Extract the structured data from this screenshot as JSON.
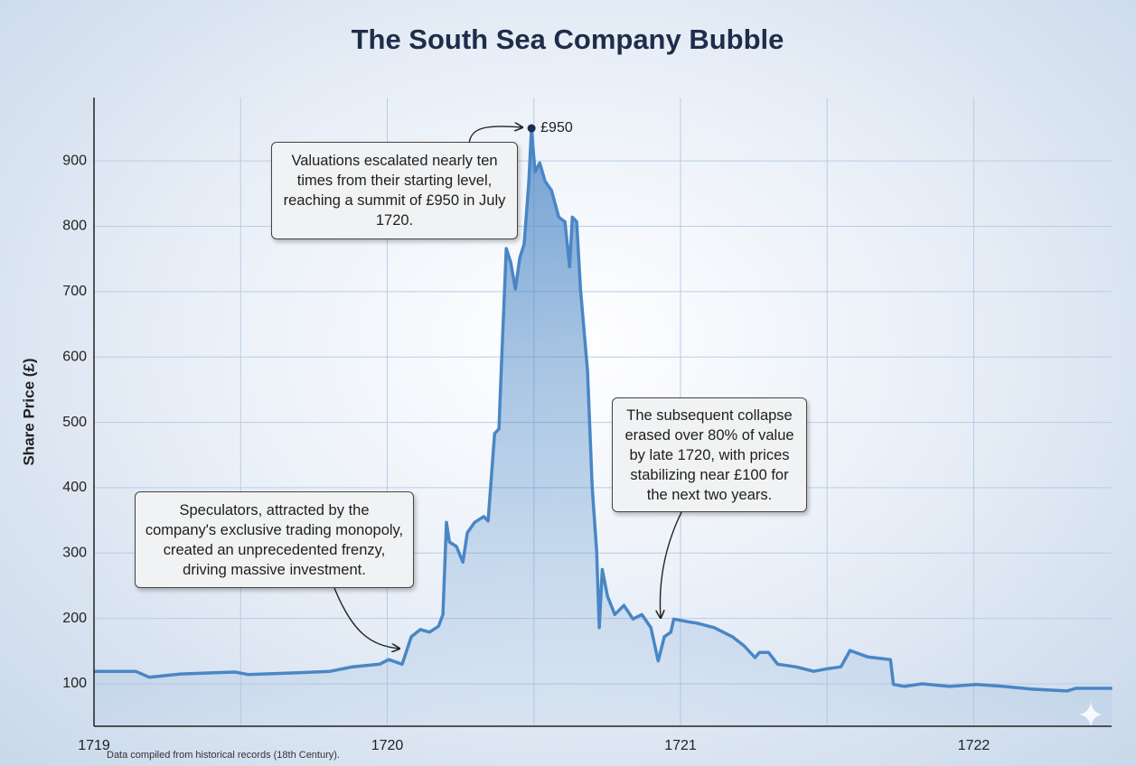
{
  "chart_data": {
    "type": "line",
    "title": "The South Sea Company Bubble",
    "y_label": "Share Price (£)",
    "footnote": "Data compiled from historical records (18th Century).",
    "xlim": [
      1719,
      1722.47
    ],
    "xticks": [
      1719,
      1720,
      1721,
      1722
    ],
    "xminor": [
      1719.5,
      1720.5,
      1721.5
    ],
    "ylim": [
      35,
      997
    ],
    "yticks": [
      100,
      200,
      300,
      400,
      500,
      600,
      700,
      800,
      900
    ],
    "grid": true,
    "series": [
      {
        "name": "Share Price",
        "color": "#4a86c5",
        "x": [
          1719.0,
          1719.142,
          1719.188,
          1719.296,
          1719.481,
          1719.527,
          1719.697,
          1719.805,
          1719.882,
          1719.974,
          1720.005,
          1720.051,
          1720.082,
          1720.113,
          1720.144,
          1720.175,
          1720.19,
          1720.202,
          1720.212,
          1720.236,
          1720.258,
          1720.273,
          1720.298,
          1720.329,
          1720.344,
          1720.366,
          1720.381,
          1720.39,
          1720.406,
          1720.421,
          1720.437,
          1720.452,
          1720.467,
          1720.483,
          1720.492,
          1720.504,
          1720.52,
          1720.538,
          1720.56,
          1720.585,
          1720.606,
          1720.622,
          1720.631,
          1720.646,
          1720.659,
          1720.683,
          1720.699,
          1720.714,
          1720.723,
          1720.733,
          1720.751,
          1720.776,
          1720.807,
          1720.838,
          1720.868,
          1720.899,
          1720.924,
          1720.945,
          1720.967,
          1720.977,
          1721.023,
          1721.054,
          1721.115,
          1721.177,
          1721.217,
          1721.254,
          1721.269,
          1721.3,
          1721.331,
          1721.393,
          1721.454,
          1721.501,
          1721.547,
          1721.578,
          1721.639,
          1721.716,
          1721.726,
          1721.763,
          1721.824,
          1721.917,
          1722.009,
          1722.102,
          1722.194,
          1722.318,
          1722.348,
          1722.472
        ],
        "values": [
          119,
          119,
          110,
          115,
          118,
          114,
          117,
          119,
          126,
          130,
          137,
          130,
          172,
          183,
          179,
          188,
          206,
          347,
          317,
          310,
          286,
          331,
          347,
          356,
          349,
          483,
          490,
          593,
          766,
          745,
          704,
          752,
          773,
          869,
          950,
          883,
          897,
          869,
          855,
          814,
          807,
          738,
          814,
          807,
          704,
          579,
          400,
          303,
          186,
          275,
          234,
          206,
          220,
          199,
          206,
          186,
          135,
          172,
          179,
          199,
          195,
          193,
          186,
          172,
          158,
          140,
          148,
          148,
          130,
          126,
          119,
          123,
          126,
          151,
          141,
          137,
          99,
          96,
          100,
          96,
          99,
          96,
          92,
          89,
          93,
          93
        ]
      }
    ],
    "peak_label": "£950",
    "annotations": [
      "Valuations escalated nearly ten times from their starting level, reaching a summit of £950 in July 1720.",
      "Speculators, attracted by the company's exclusive trading monopoly, created an unprecedented frenzy, driving massive investment.",
      "The subsequent collapse erased over 80% of value by late 1720, with prices stabilizing near £100 for the next two years."
    ]
  }
}
